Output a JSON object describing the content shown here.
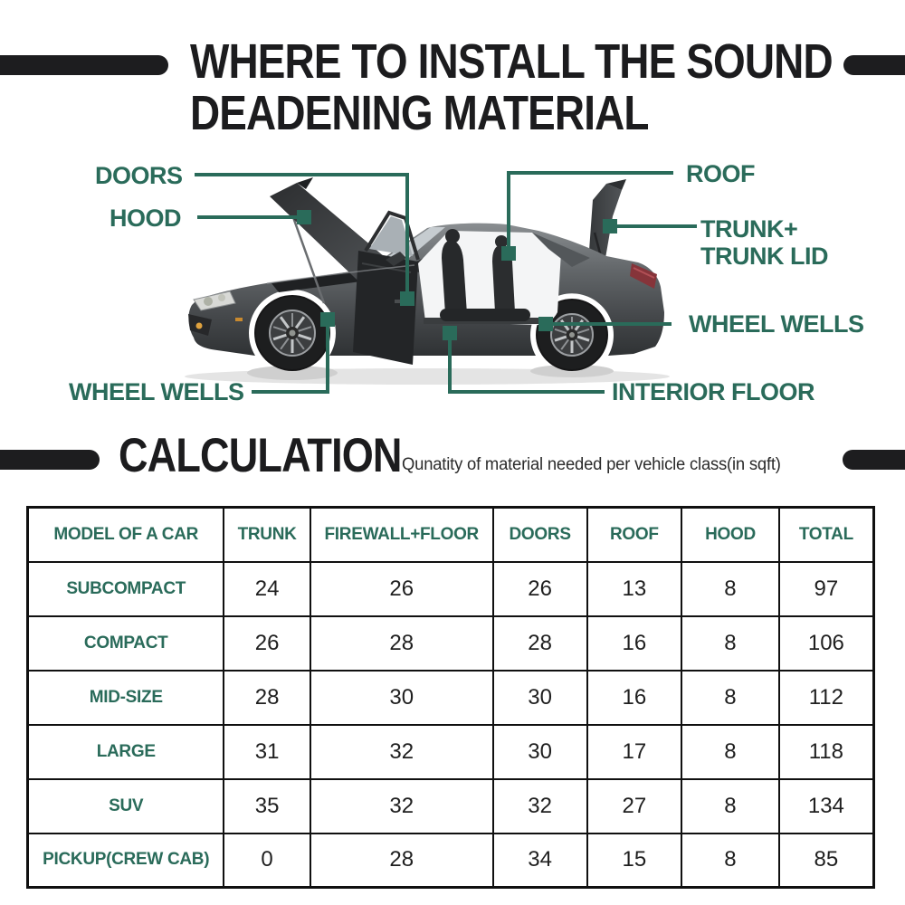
{
  "colors": {
    "accent_green": "#2a6b5a",
    "bar_dark": "#1d1d1f",
    "title_dark": "#1c1c1e",
    "subtitle_gray": "#2b2b2b",
    "table_border": "#101010",
    "number_dark": "#1f1f1f"
  },
  "header": {
    "title_line1": "WHERE TO INSTALL THE SOUND",
    "title_line2": "DEADENING MATERIAL"
  },
  "diagram": {
    "labels": {
      "doors": "DOORS",
      "hood": "HOOD",
      "roof": "ROOF",
      "trunk_line1": "TRUNK+",
      "trunk_line2": "TRUNK LID",
      "wheel_wells_left": "WHEEL WELLS",
      "wheel_wells_right": "WHEEL WELLS",
      "interior_floor": "INTERIOR FLOOR"
    }
  },
  "calculation": {
    "heading": "CALCULATION",
    "subtitle": "Qunatity of material needed per vehicle class(in sqft)"
  },
  "table": {
    "headers": [
      "MODEL OF A CAR",
      "TRUNK",
      "FIREWALL+FLOOR",
      "DOORS",
      "ROOF",
      "HOOD",
      "TOTAL"
    ],
    "rows": [
      {
        "model": "SUBCOMPACT",
        "values": [
          24,
          26,
          26,
          13,
          8,
          97
        ]
      },
      {
        "model": "COMPACT",
        "values": [
          26,
          28,
          28,
          16,
          8,
          106
        ]
      },
      {
        "model": "MID-SIZE",
        "values": [
          28,
          30,
          30,
          16,
          8,
          112
        ]
      },
      {
        "model": "LARGE",
        "values": [
          31,
          32,
          30,
          17,
          8,
          118
        ]
      },
      {
        "model": "SUV",
        "values": [
          35,
          32,
          32,
          27,
          8,
          134
        ]
      },
      {
        "model": "PICKUP(CREW CAB)",
        "values": [
          0,
          28,
          34,
          15,
          8,
          85
        ]
      }
    ]
  },
  "chart_data": {
    "type": "table",
    "title": "CALCULATION",
    "subtitle": "Qunatity of material needed per vehicle class(in sqft)",
    "columns": [
      "MODEL OF A CAR",
      "TRUNK",
      "FIREWALL+FLOOR",
      "DOORS",
      "ROOF",
      "HOOD",
      "TOTAL"
    ],
    "rows": [
      [
        "SUBCOMPACT",
        24,
        26,
        26,
        13,
        8,
        97
      ],
      [
        "COMPACT",
        26,
        28,
        28,
        16,
        8,
        106
      ],
      [
        "MID-SIZE",
        28,
        30,
        30,
        16,
        8,
        112
      ],
      [
        "LARGE",
        31,
        32,
        30,
        17,
        8,
        118
      ],
      [
        "SUV",
        35,
        32,
        32,
        27,
        8,
        134
      ],
      [
        "PICKUP(CREW CAB)",
        0,
        28,
        34,
        15,
        8,
        85
      ]
    ]
  }
}
